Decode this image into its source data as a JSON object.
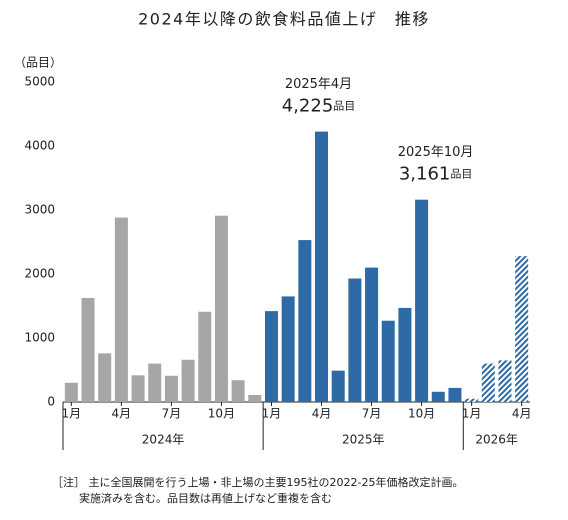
{
  "chart_data": {
    "type": "bar",
    "title": "2024年以降の飲食料品値上げ　推移",
    "y_label": "（品目）",
    "ylim": [
      0,
      5000
    ],
    "yticks": [
      0,
      1000,
      2000,
      3000,
      4000,
      5000
    ],
    "value_unit": "品目",
    "series": [
      {
        "name": "2024年",
        "color": "#a6a6a6",
        "hatch": false,
        "categories": [
          "1月",
          null,
          null,
          "4月",
          null,
          null,
          "7月",
          null,
          null,
          "10月",
          null,
          null
        ],
        "values": [
          300,
          1626,
          760,
          2881,
          417,
          600,
          410,
          660,
          1410,
          2911,
          340,
          110
        ]
      },
      {
        "name": "2025年",
        "color": "#2e6aa6",
        "hatch": false,
        "categories": [
          "1月",
          null,
          null,
          "4月",
          null,
          null,
          "7月",
          null,
          null,
          "10月",
          null,
          null
        ],
        "values": [
          1420,
          1650,
          2530,
          4225,
          490,
          1930,
          2100,
          1270,
          1470,
          3161,
          160,
          220
        ],
        "value_labels": [
          null,
          null,
          null,
          "4,225",
          null,
          null,
          null,
          null,
          null,
          "3,161",
          null,
          null
        ],
        "annotations": [
          null,
          null,
          null,
          "2025年4月",
          null,
          null,
          null,
          null,
          null,
          "2025年10月",
          null,
          null
        ]
      },
      {
        "name": "2026年",
        "color": "#2e6aa6",
        "hatch": true,
        "categories": [
          "1月",
          null,
          null,
          "4月"
        ],
        "values": [
          50,
          600,
          650,
          2280
        ]
      }
    ],
    "notes": [
      "［注］ 主に全国展開を行う上場・非上場の主要195社の2022-25年価格改定計画。",
      "実施済みを含む。品目数は再値上げなど重複を含む"
    ]
  }
}
